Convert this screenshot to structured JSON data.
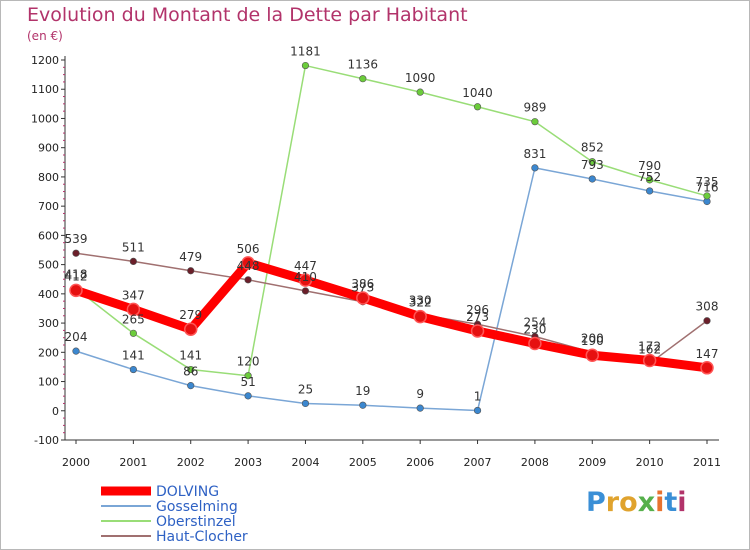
{
  "header": {
    "title": "Evolution du Montant de la Dette par Habitant",
    "subtitle": "(en €)"
  },
  "logo": {
    "text": "Proxiti",
    "letter_colors": [
      "#3a8fd6",
      "#e0a32e",
      "#e0a32e",
      "#56b04b",
      "#e8732f",
      "#3a8fd6",
      "#b2336a"
    ]
  },
  "chart_data": {
    "type": "line",
    "title": "Evolution du Montant de la Dette par Habitant",
    "subtitle": "(en €)",
    "xlabel": "",
    "ylabel": "",
    "x": [
      "2000",
      "2001",
      "2002",
      "2003",
      "2004",
      "2005",
      "2006",
      "2007",
      "2008",
      "2009",
      "2010",
      "2011"
    ],
    "ylim": [
      -100,
      1200
    ],
    "yticks": [
      -100,
      0,
      100,
      200,
      300,
      400,
      500,
      600,
      700,
      800,
      900,
      1000,
      1100,
      1200
    ],
    "grid": false,
    "legend_position": "bottom-left",
    "series": [
      {
        "name": "DOLVING",
        "color": "#ff0000",
        "marker_color": "#e61010",
        "style": "thick",
        "values": [
          412,
          347,
          279,
          506,
          447,
          386,
          322,
          273,
          230,
          190,
          172,
          147
        ]
      },
      {
        "name": "Gosselming",
        "color": "#7aa6d6",
        "marker_color": "#3b87cf",
        "style": "thin",
        "values": [
          204,
          141,
          86,
          51,
          25,
          19,
          9,
          1,
          831,
          793,
          752,
          716
        ]
      },
      {
        "name": "Oberstinzel",
        "color": "#99dd77",
        "marker_color": "#6bcc3a",
        "style": "thin",
        "values": [
          418,
          265,
          141,
          120,
          1181,
          1136,
          1090,
          1040,
          989,
          852,
          790,
          735
        ]
      },
      {
        "name": "Haut-Clocher",
        "color": "#a07070",
        "marker_color": "#6b1f2a",
        "style": "thin",
        "values": [
          539,
          511,
          479,
          448,
          410,
          373,
          330,
          296,
          254,
          200,
          162,
          308
        ]
      }
    ]
  }
}
